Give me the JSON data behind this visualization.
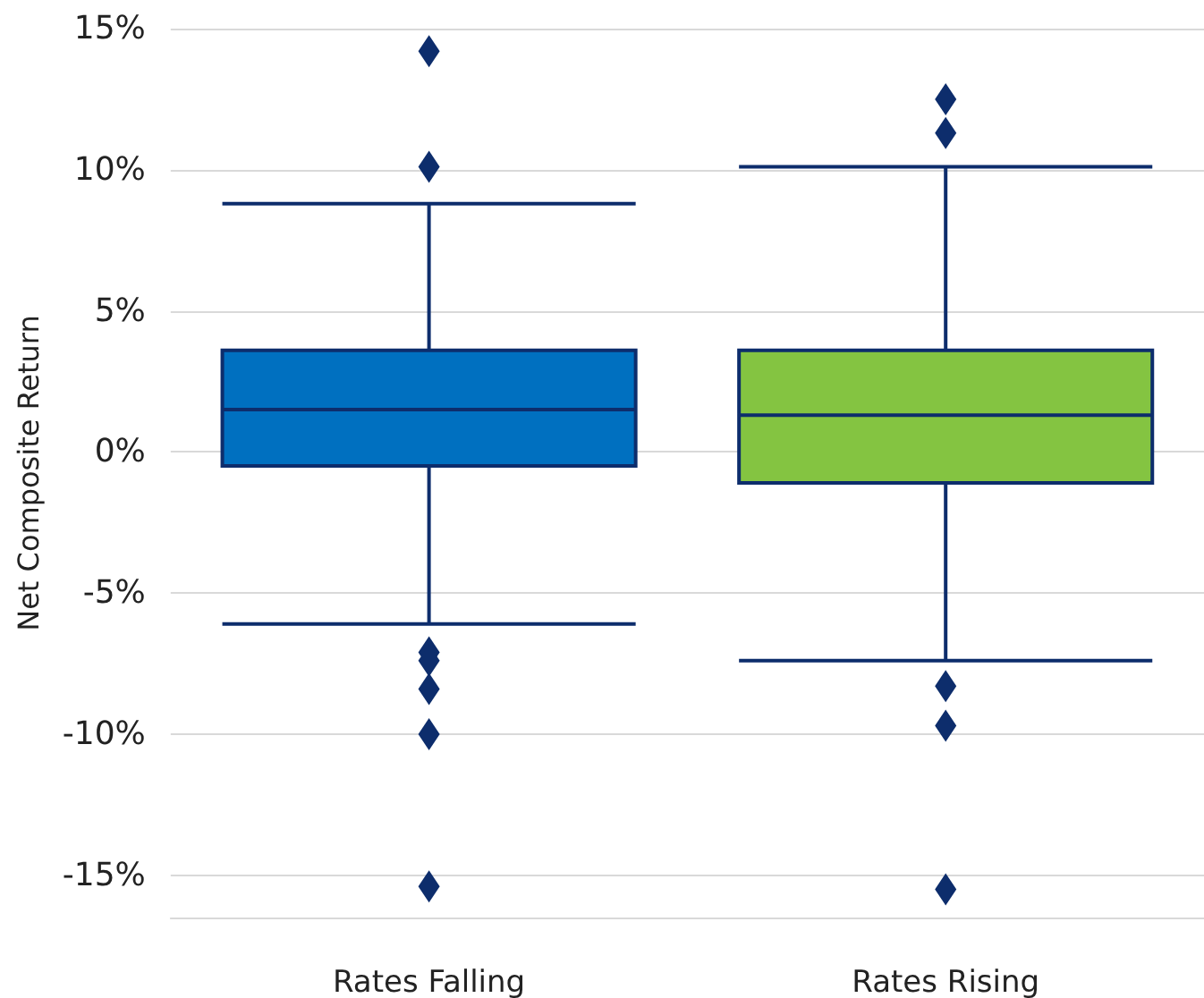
{
  "chart_data": {
    "type": "box",
    "ylabel": "Net Composite Return",
    "categories": [
      "Rates Falling",
      "Rates Rising"
    ],
    "boxes": [
      {
        "low": -6.1,
        "q1": -0.5,
        "median": 1.5,
        "q3": 3.6,
        "high": 8.8,
        "outliers": [
          14.2,
          10.1,
          -7.1,
          -7.4,
          -8.4,
          -10.0,
          -15.4
        ]
      },
      {
        "low": -7.4,
        "q1": -1.1,
        "median": 1.3,
        "q3": 3.6,
        "high": 10.1,
        "outliers": [
          12.5,
          11.3,
          -8.3,
          -9.7,
          -15.5
        ]
      }
    ],
    "colors": [
      "#0070c0",
      "#84c441"
    ],
    "ylim": [
      -16.5,
      15
    ],
    "yticks": [
      {
        "value": -15,
        "label": "-15%"
      },
      {
        "value": -10,
        "label": "-10%"
      },
      {
        "value": -5,
        "label": "-5%"
      },
      {
        "value": 0,
        "label": "0%"
      },
      {
        "value": 5,
        "label": "5%"
      },
      {
        "value": 10,
        "label": "10%"
      },
      {
        "value": 15,
        "label": "15%"
      }
    ],
    "grid": "y",
    "marker": "diamond"
  }
}
